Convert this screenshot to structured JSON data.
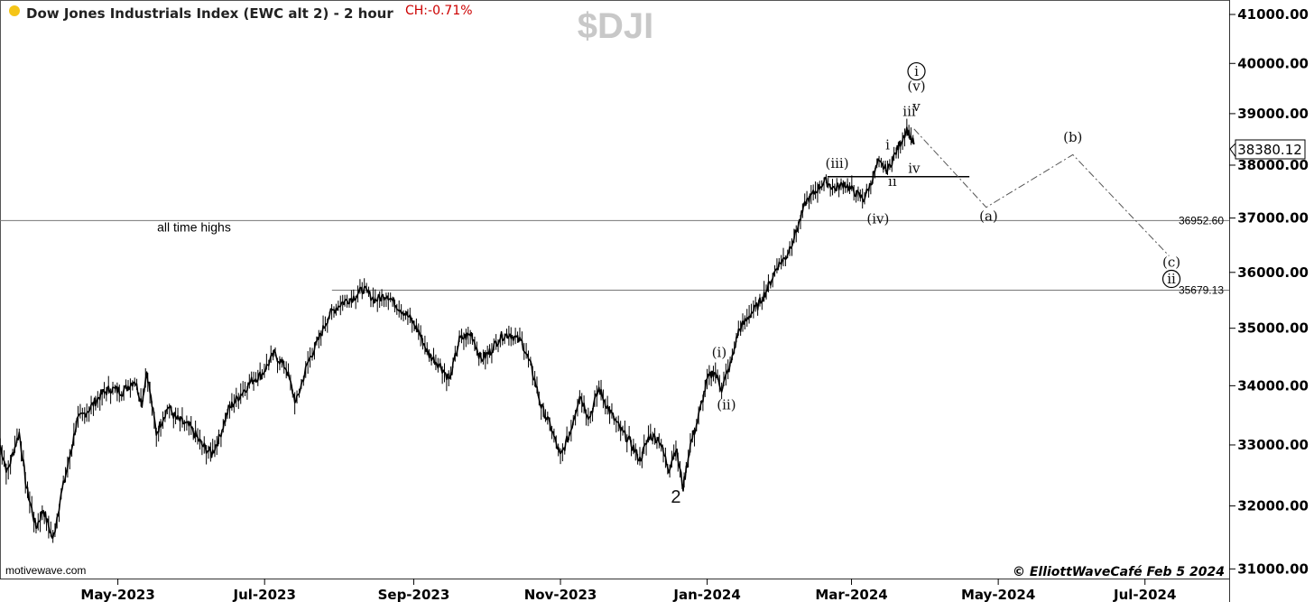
{
  "header": {
    "title": "Dow Jones Industrials Index (EWC alt 2) - 2 hour",
    "change": "CH:-0.71%",
    "watermark": "$DJI",
    "status_dot_color": "#f5c518"
  },
  "footer": {
    "credit": "motivewave.com",
    "copyright": "© ElliottWaveCafé Feb 5 2024"
  },
  "chart_data": {
    "type": "line",
    "title": "Dow Jones Industrials Index (EWC alt 2) - 2 hour",
    "x_ticks": [
      "May-2023",
      "Jul-2023",
      "Sep-2023",
      "Nov-2023",
      "Jan-2024",
      "Mar-2024",
      "May-2024",
      "Jul-2024"
    ],
    "x_range": [
      "2023-03-13",
      "2024-08-05"
    ],
    "y_ticks": [
      "31000.00",
      "32000.00",
      "33000.00",
      "34000.00",
      "35000.00",
      "36000.00",
      "37000.00",
      "38000.00",
      "39000.00",
      "40000.00",
      "41000.00"
    ],
    "y_range": [
      30850,
      41300
    ],
    "y_scale": "log",
    "grid": false,
    "last_price": "38380.12",
    "price_series": {
      "name": "",
      "points": [
        [
          "2023-03-13",
          33000
        ],
        [
          "2023-03-16",
          32550
        ],
        [
          "2023-03-21",
          33200
        ],
        [
          "2023-03-24",
          32300
        ],
        [
          "2023-03-28",
          31650
        ],
        [
          "2023-03-31",
          31950
        ],
        [
          "2023-04-04",
          31450
        ],
        [
          "2023-04-07",
          32100
        ],
        [
          "2023-04-11",
          32800
        ],
        [
          "2023-04-14",
          33400
        ],
        [
          "2023-04-19",
          33600
        ],
        [
          "2023-04-24",
          33850
        ],
        [
          "2023-04-28",
          33950
        ],
        [
          "2023-05-03",
          33900
        ],
        [
          "2023-05-08",
          34100
        ],
        [
          "2023-05-11",
          33700
        ],
        [
          "2023-05-13",
          34250
        ],
        [
          "2023-05-17",
          33200
        ],
        [
          "2023-05-22",
          33650
        ],
        [
          "2023-05-25",
          33450
        ],
        [
          "2023-05-31",
          33300
        ],
        [
          "2023-06-05",
          33000
        ],
        [
          "2023-06-09",
          32850
        ],
        [
          "2023-06-12",
          33100
        ],
        [
          "2023-06-16",
          33600
        ],
        [
          "2023-06-22",
          33900
        ],
        [
          "2023-06-26",
          34100
        ],
        [
          "2023-06-30",
          34200
        ],
        [
          "2023-07-05",
          34550
        ],
        [
          "2023-07-10",
          34300
        ],
        [
          "2023-07-14",
          33700
        ],
        [
          "2023-07-19",
          34400
        ],
        [
          "2023-07-24",
          34850
        ],
        [
          "2023-07-28",
          35250
        ],
        [
          "2023-08-02",
          35450
        ],
        [
          "2023-08-07",
          35550
        ],
        [
          "2023-08-11",
          35700
        ],
        [
          "2023-08-16",
          35500
        ],
        [
          "2023-08-21",
          35600
        ],
        [
          "2023-08-25",
          35400
        ],
        [
          "2023-08-30",
          35200
        ],
        [
          "2023-09-03",
          34950
        ],
        [
          "2023-09-07",
          34550
        ],
        [
          "2023-09-12",
          34350
        ],
        [
          "2023-09-16",
          34100
        ],
        [
          "2023-09-20",
          34800
        ],
        [
          "2023-09-25",
          34900
        ],
        [
          "2023-09-29",
          34450
        ],
        [
          "2023-10-03",
          34600
        ],
        [
          "2023-10-07",
          34850
        ],
        [
          "2023-10-11",
          34900
        ],
        [
          "2023-10-16",
          34750
        ],
        [
          "2023-10-20",
          34300
        ],
        [
          "2023-10-24",
          33650
        ],
        [
          "2023-10-28",
          33300
        ],
        [
          "2023-11-01",
          32800
        ],
        [
          "2023-11-05",
          33200
        ],
        [
          "2023-11-09",
          33850
        ],
        [
          "2023-11-13",
          33450
        ],
        [
          "2023-11-17",
          33950
        ],
        [
          "2023-11-21",
          33600
        ],
        [
          "2023-11-26",
          33250
        ],
        [
          "2023-11-30",
          33050
        ],
        [
          "2023-12-04",
          32750
        ],
        [
          "2023-12-08",
          33150
        ],
        [
          "2023-12-12",
          33100
        ],
        [
          "2023-12-16",
          32600
        ],
        [
          "2023-12-19",
          32950
        ],
        [
          "2023-12-22",
          32300
        ],
        [
          "2023-12-25",
          33000
        ],
        [
          "2023-12-28",
          33400
        ],
        [
          "2024-01-01",
          34100
        ],
        [
          "2024-01-04",
          34250
        ],
        [
          "2024-01-07",
          33950
        ],
        [
          "2024-01-11",
          34400
        ],
        [
          "2024-01-14",
          34950
        ],
        [
          "2024-01-18",
          35200
        ],
        [
          "2024-01-22",
          35400
        ],
        [
          "2024-01-26",
          35700
        ],
        [
          "2024-01-30",
          36100
        ],
        [
          "2024-02-03",
          36300
        ],
        [
          "2024-02-07",
          36750
        ],
        [
          "2024-02-11",
          37300
        ],
        [
          "2024-02-15",
          37500
        ],
        [
          "2024-02-19",
          37700
        ],
        [
          "2024-02-23",
          37550
        ],
        [
          "2024-02-27",
          37650
        ],
        [
          "2024-03-02",
          37500
        ],
        [
          "2024-03-06",
          37350
        ],
        [
          "2024-03-09",
          37650
        ],
        [
          "2024-03-12",
          38050
        ],
        [
          "2024-03-16",
          37900
        ],
        [
          "2024-03-20",
          38300
        ],
        [
          "2024-03-24",
          38700
        ],
        [
          "2024-03-27",
          38400
        ]
      ]
    },
    "horizontal_lines": [
      {
        "value": 36952.6,
        "label": "36952.60",
        "note": "all time highs"
      },
      {
        "value": 35679.13,
        "label": "35679.13"
      },
      {
        "value": 37780
      }
    ],
    "projection": [
      [
        "2024-03-27",
        38700
      ],
      [
        "2024-04-26",
        37200
      ],
      [
        "2024-06-01",
        38200
      ],
      [
        "2024-07-11",
        36300
      ]
    ],
    "wave_labels": [
      {
        "text": "2",
        "x": "2023-12-19",
        "y": 32050,
        "style": "big"
      },
      {
        "text": "(i)",
        "x": "2024-01-06",
        "y": 34500
      },
      {
        "text": "(ii)",
        "x": "2024-01-09",
        "y": 33600
      },
      {
        "text": "(iii)",
        "x": "2024-02-24",
        "y": 37950
      },
      {
        "text": "(iv)",
        "x": "2024-03-12",
        "y": 36900
      },
      {
        "text": "i",
        "x": "2024-03-16",
        "y": 38300
      },
      {
        "text": "ii",
        "x": "2024-03-18",
        "y": 37600
      },
      {
        "text": "iii",
        "x": "2024-03-25",
        "y": 38950
      },
      {
        "text": "iv",
        "x": "2024-03-27",
        "y": 37850
      },
      {
        "text": "v",
        "x": "2024-03-28",
        "y": 39050
      },
      {
        "text": "(v)",
        "x": "2024-03-28",
        "y": 39450
      },
      {
        "text": "i",
        "x": "2024-03-28",
        "y": 39750,
        "circled": true
      },
      {
        "text": "(a)",
        "x": "2024-04-27",
        "y": 36950
      },
      {
        "text": "(b)",
        "x": "2024-06-01",
        "y": 38450
      },
      {
        "text": "(c)",
        "x": "2024-07-12",
        "y": 36100
      },
      {
        "text": "ii",
        "x": "2024-07-12",
        "y": 35800,
        "circled": true
      }
    ]
  }
}
